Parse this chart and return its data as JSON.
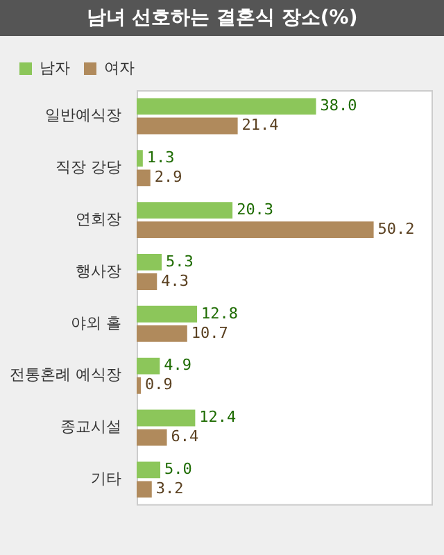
{
  "chart_data": {
    "type": "bar",
    "orientation": "horizontal",
    "title": "남녀 선호하는 결혼식 장소(%)",
    "categories": [
      "일반예식장",
      "직장 강당",
      "연회장",
      "행사장",
      "야외 홀",
      "전통혼례 예식장",
      "종교시설",
      "기타"
    ],
    "series": [
      {
        "name": "남자",
        "color": "#8cc65a",
        "values": [
          38,
          1.3,
          20.3,
          5.3,
          12.8,
          4.9,
          12.4,
          5
        ],
        "value_labels": [
          "38.0",
          "1.3",
          "20.3",
          "5.3",
          "12.8",
          "4.9",
          "12.4",
          "5.0"
        ]
      },
      {
        "name": "여자",
        "color": "#b08a5c",
        "values": [
          21.4,
          2.9,
          50.2,
          4.3,
          10.7,
          0.9,
          6.4,
          3.2
        ],
        "value_labels": [
          "21.4",
          "2.9",
          "50.2",
          "4.3",
          "10.7",
          "0.9",
          "6.4",
          "3.2"
        ]
      }
    ],
    "legend": "top left"
  }
}
